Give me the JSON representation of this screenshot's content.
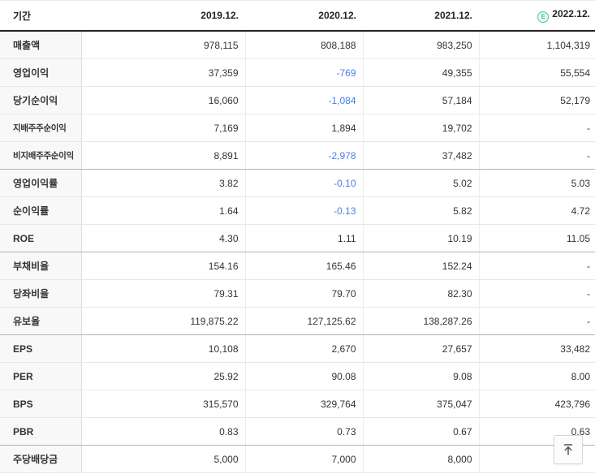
{
  "table": {
    "header": {
      "period_label": "기간",
      "columns": [
        "2019.12.",
        "2020.12.",
        "2021.12.",
        "2022.12."
      ],
      "estimate_badge": "E"
    },
    "rows": [
      {
        "label": "매출액",
        "values": [
          "978,115",
          "808,188",
          "983,250",
          "1,104,319"
        ]
      },
      {
        "label": "영업이익",
        "values": [
          "37,359",
          "-769",
          "49,355",
          "55,554"
        ]
      },
      {
        "label": "당기순이익",
        "values": [
          "16,060",
          "-1,084",
          "57,184",
          "52,179"
        ]
      },
      {
        "label": "지배주주순이익",
        "values": [
          "7,169",
          "1,894",
          "19,702",
          "-"
        ]
      },
      {
        "label": "비지배주주순이익",
        "values": [
          "8,891",
          "-2,978",
          "37,482",
          "-"
        ],
        "group_end": true
      },
      {
        "label": "영업이익률",
        "values": [
          "3.82",
          "-0.10",
          "5.02",
          "5.03"
        ]
      },
      {
        "label": "순이익률",
        "values": [
          "1.64",
          "-0.13",
          "5.82",
          "4.72"
        ]
      },
      {
        "label": "ROE",
        "values": [
          "4.30",
          "1.11",
          "10.19",
          "11.05"
        ],
        "group_end": true
      },
      {
        "label": "부채비율",
        "values": [
          "154.16",
          "165.46",
          "152.24",
          "-"
        ]
      },
      {
        "label": "당좌비율",
        "values": [
          "79.31",
          "79.70",
          "82.30",
          "-"
        ]
      },
      {
        "label": "유보율",
        "values": [
          "119,875.22",
          "127,125.62",
          "138,287.26",
          "-"
        ],
        "group_end": true
      },
      {
        "label": "EPS",
        "values": [
          "10,108",
          "2,670",
          "27,657",
          "33,482"
        ]
      },
      {
        "label": "PER",
        "values": [
          "25.92",
          "90.08",
          "9.08",
          "8.00"
        ]
      },
      {
        "label": "BPS",
        "values": [
          "315,570",
          "329,764",
          "375,047",
          "423,796"
        ]
      },
      {
        "label": "PBR",
        "values": [
          "0.83",
          "0.73",
          "0.67",
          "0.63"
        ],
        "group_end": true
      },
      {
        "label": "주당배당금",
        "values": [
          "5,000",
          "7,000",
          "8,000",
          ""
        ]
      }
    ]
  },
  "colors": {
    "negative_value": "#4a7de8",
    "estimate_badge": "#3fc7a3",
    "header_border": "#222222",
    "group_border": "#b3b3b3",
    "row_border": "#e7e7e7",
    "label_bg": "#f8f8f8"
  },
  "scroll_top_button": {
    "icon_name": "arrow-to-top-icon"
  }
}
